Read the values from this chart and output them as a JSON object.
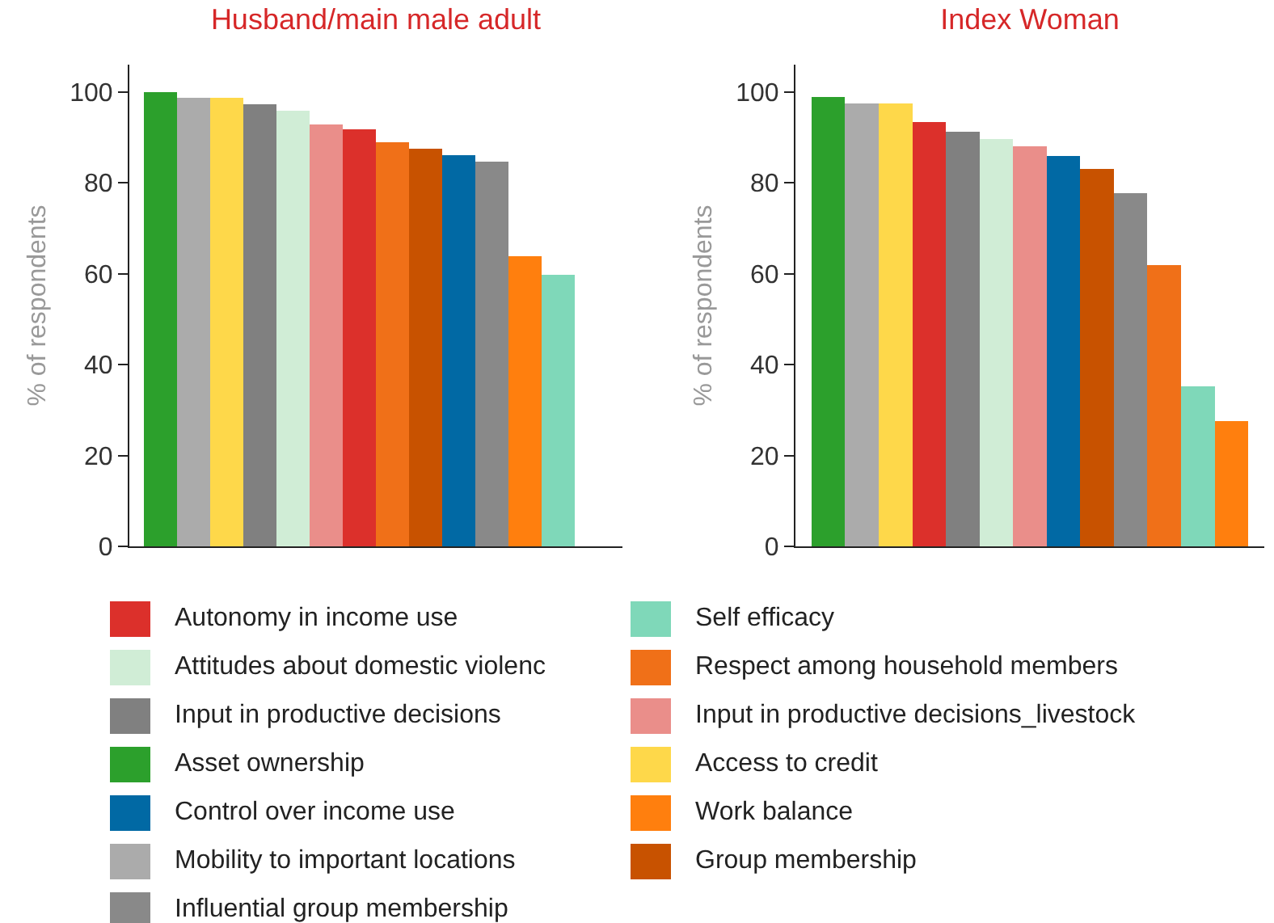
{
  "chart_data": [
    {
      "type": "bar",
      "title": "Husband/main male adult",
      "ylabel": "% of respondents",
      "stacked": true,
      "legend": "bottom",
      "ylim": [
        0,
        106
      ],
      "yticks": [
        0,
        20,
        40,
        60,
        80,
        100
      ],
      "categories": [
        null,
        null,
        null,
        null,
        null,
        null,
        null,
        null,
        null,
        null,
        null,
        null,
        null
      ],
      "series": [
        {
          "name": "Autonomy in income use",
          "color": "#dc302b",
          "values": [
            null,
            null,
            null,
            null,
            null,
            null,
            91.7,
            null,
            null,
            null,
            null,
            null,
            null
          ]
        },
        {
          "name": "Self efficacy",
          "color": "#7fd8b9",
          "values": [
            null,
            null,
            null,
            null,
            null,
            null,
            null,
            null,
            null,
            null,
            null,
            null,
            59.7
          ]
        },
        {
          "name": "Attitudes about domestic violenc",
          "color": "#d0edd6",
          "values": [
            null,
            null,
            null,
            null,
            95.8,
            null,
            null,
            null,
            null,
            null,
            null,
            null,
            null
          ]
        },
        {
          "name": "Respect among household members",
          "color": "#f07018",
          "values": [
            null,
            null,
            null,
            null,
            null,
            null,
            null,
            88.9,
            null,
            null,
            null,
            null,
            null
          ]
        },
        {
          "name": "Input in productive decisions",
          "color": "#808080",
          "values": [
            null,
            null,
            null,
            97.3,
            null,
            null,
            null,
            null,
            null,
            null,
            null,
            null,
            null
          ]
        },
        {
          "name": "Input in productive decisions_livestock",
          "color": "#ea8e8a",
          "values": [
            null,
            null,
            null,
            null,
            null,
            92.8,
            null,
            null,
            null,
            null,
            null,
            null,
            null
          ]
        },
        {
          "name": "Asset ownership",
          "color": "#2ca02c",
          "values": [
            100,
            null,
            null,
            null,
            null,
            null,
            null,
            null,
            null,
            null,
            null,
            null,
            null
          ]
        },
        {
          "name": "Access to credit",
          "color": "#fed84a",
          "values": [
            null,
            null,
            98.7,
            null,
            null,
            null,
            null,
            null,
            null,
            null,
            null,
            null,
            null
          ]
        },
        {
          "name": "Control over income use",
          "color": "#0169a4",
          "values": [
            null,
            null,
            null,
            null,
            null,
            null,
            null,
            null,
            null,
            86.1,
            null,
            null,
            null
          ]
        },
        {
          "name": "Work balance",
          "color": "#ff7f0e",
          "values": [
            null,
            null,
            null,
            null,
            null,
            null,
            null,
            null,
            null,
            null,
            null,
            63.9,
            null
          ]
        },
        {
          "name": "Mobility to important locations",
          "color": "#ababab",
          "values": [
            null,
            98.7,
            null,
            null,
            null,
            null,
            null,
            null,
            null,
            null,
            null,
            null,
            null
          ]
        },
        {
          "name": "Group membership",
          "color": "#c85200",
          "values": [
            null,
            null,
            null,
            null,
            null,
            null,
            null,
            null,
            87.5,
            null,
            null,
            null,
            null
          ]
        },
        {
          "name": "Influential group membership",
          "color": "#898989",
          "values": [
            null,
            null,
            null,
            null,
            null,
            null,
            null,
            null,
            null,
            null,
            84.6,
            null,
            null
          ]
        }
      ]
    },
    {
      "type": "bar",
      "title": "Index Woman",
      "ylabel": "% of respondents",
      "stacked": true,
      "ylim": [
        0,
        106
      ],
      "yticks": [
        0,
        20,
        40,
        60,
        80,
        100
      ],
      "categories": [
        null,
        null,
        null,
        null,
        null,
        null,
        null,
        null,
        null,
        null,
        null,
        null,
        null
      ],
      "series": [
        {
          "color": "#dc302b",
          "values": [
            null,
            null,
            null,
            93.4,
            null,
            null,
            null,
            null,
            null,
            null,
            null,
            null,
            null
          ]
        },
        {
          "color": "#7fd8b9",
          "values": [
            null,
            null,
            null,
            null,
            null,
            null,
            null,
            null,
            null,
            null,
            null,
            35.2,
            null
          ]
        },
        {
          "color": "#d0edd6",
          "values": [
            null,
            null,
            null,
            null,
            null,
            89.7,
            null,
            null,
            null,
            null,
            null,
            null,
            null
          ]
        },
        {
          "color": "#f07018",
          "values": [
            null,
            null,
            null,
            null,
            null,
            null,
            null,
            null,
            null,
            null,
            61.9,
            null,
            null
          ]
        },
        {
          "color": "#808080",
          "values": [
            null,
            null,
            null,
            null,
            91.2,
            null,
            null,
            null,
            null,
            null,
            null,
            null,
            null
          ]
        },
        {
          "color": "#ea8e8a",
          "values": [
            null,
            null,
            null,
            null,
            null,
            null,
            88.1,
            null,
            null,
            null,
            null,
            null,
            null
          ]
        },
        {
          "color": "#2ca02c",
          "values": [
            98.9,
            null,
            null,
            null,
            null,
            null,
            null,
            null,
            null,
            null,
            null,
            null,
            null
          ]
        },
        {
          "color": "#fed84a",
          "values": [
            null,
            null,
            97.5,
            null,
            null,
            null,
            null,
            null,
            null,
            null,
            null,
            null,
            null
          ]
        },
        {
          "color": "#0169a4",
          "values": [
            null,
            null,
            null,
            null,
            null,
            null,
            null,
            85.9,
            null,
            null,
            null,
            null,
            null
          ]
        },
        {
          "color": "#ff7f0e",
          "values": [
            null,
            null,
            null,
            null,
            null,
            null,
            null,
            null,
            null,
            null,
            null,
            null,
            27.5
          ]
        },
        {
          "color": "#ababab",
          "values": [
            null,
            97.5,
            null,
            null,
            null,
            null,
            null,
            null,
            null,
            null,
            null,
            null,
            null
          ]
        },
        {
          "color": "#c85200",
          "values": [
            null,
            null,
            null,
            null,
            null,
            null,
            null,
            null,
            83.1,
            null,
            null,
            null,
            null
          ]
        },
        {
          "color": "#898989",
          "values": [
            null,
            null,
            null,
            null,
            null,
            null,
            null,
            null,
            null,
            77.8,
            null,
            null,
            null
          ]
        }
      ]
    }
  ]
}
